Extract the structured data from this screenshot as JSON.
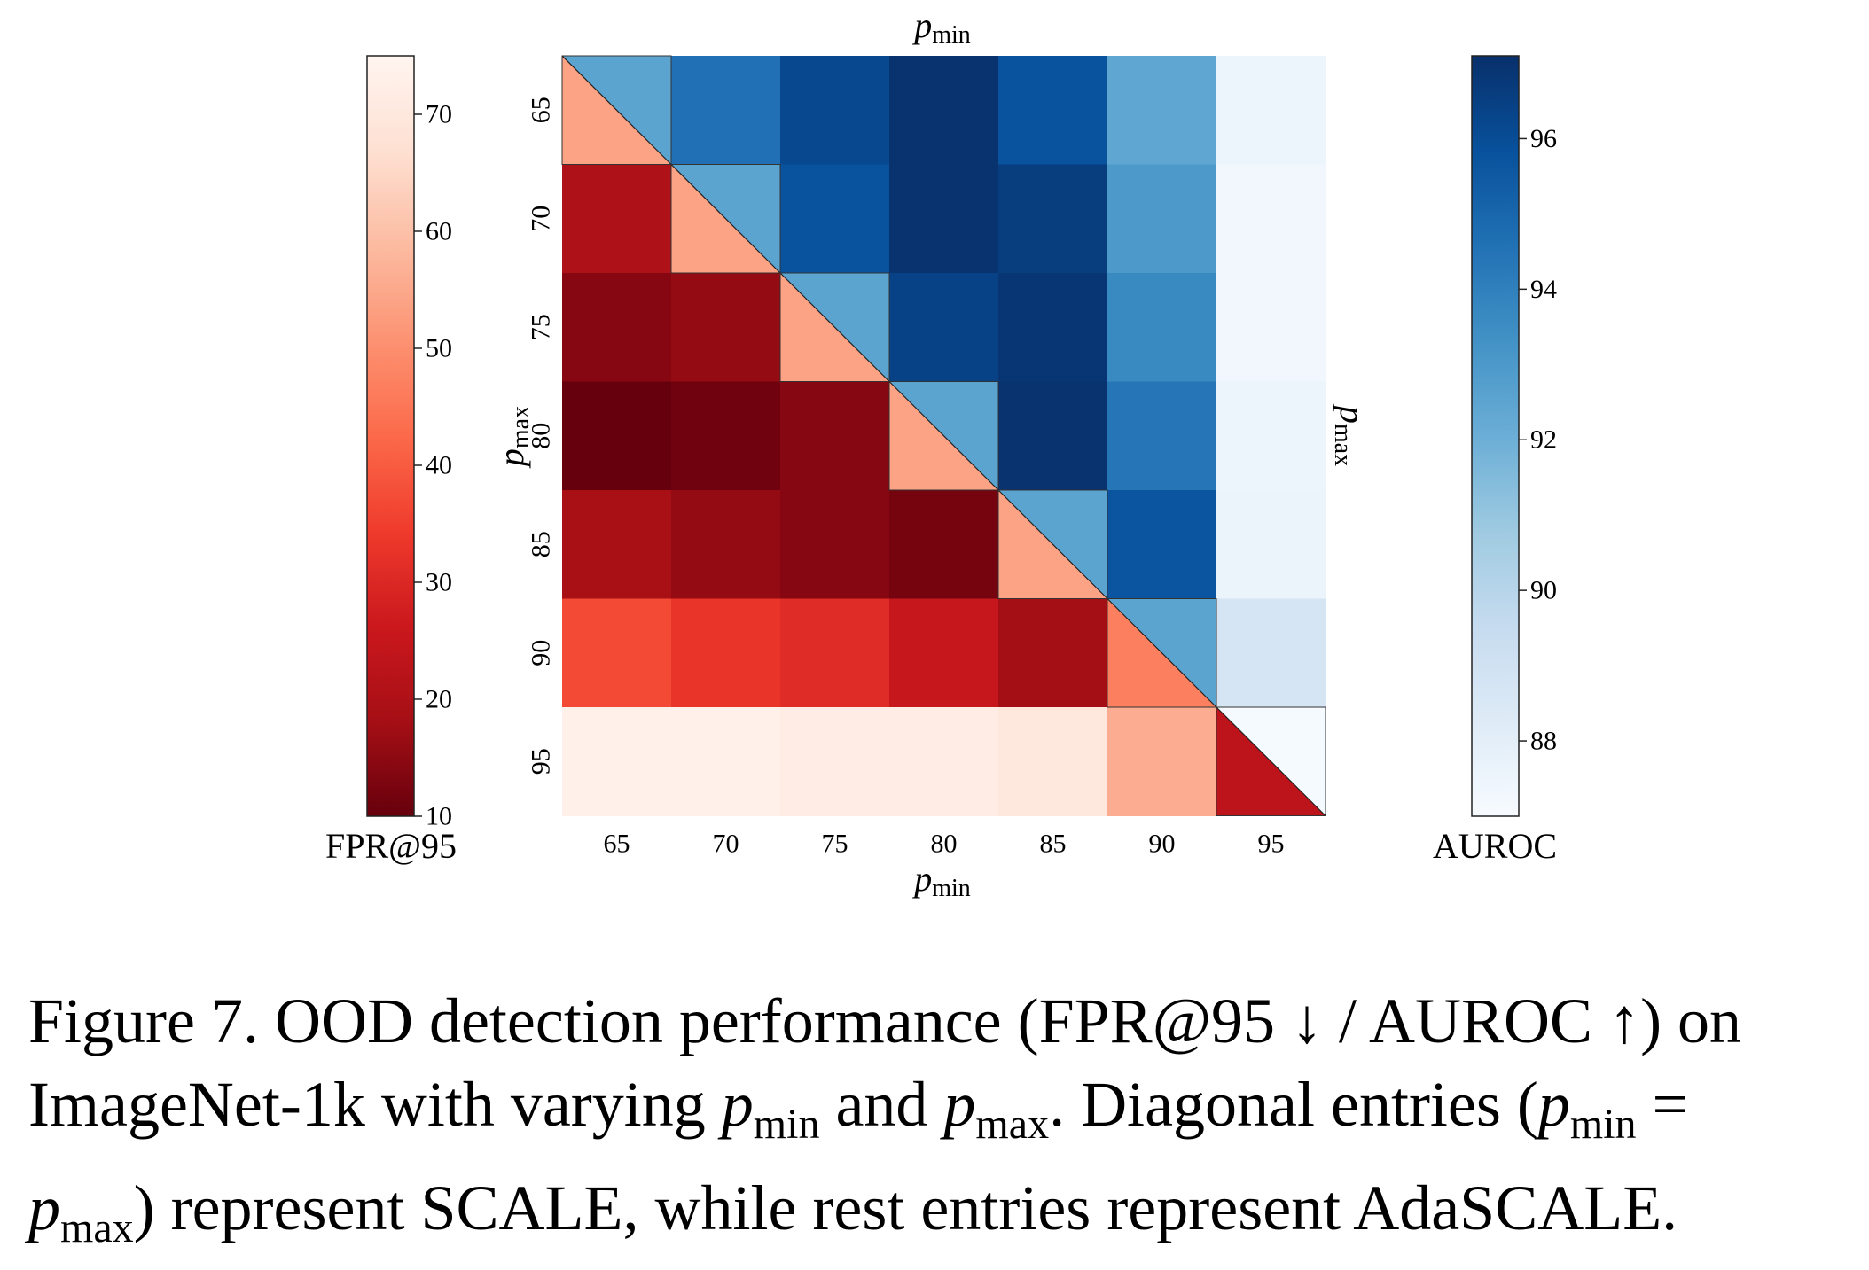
{
  "chart_data": {
    "type": "heatmap",
    "x_categories": [
      65,
      70,
      75,
      80,
      85,
      90,
      95
    ],
    "y_categories": [
      65,
      70,
      75,
      80,
      85,
      90,
      95
    ],
    "axis_labels": {
      "x_top": {
        "base": "p",
        "sub": "min"
      },
      "x_bottom": {
        "base": "p",
        "sub": "min"
      },
      "y_left": {
        "base": "p",
        "sub": "max"
      },
      "y_right": {
        "base": "p",
        "sub": "max"
      }
    },
    "fpr95": {
      "label": "FPR@95",
      "colorbar_range": [
        10,
        75
      ],
      "colorbar_ticks": [
        10,
        20,
        30,
        40,
        50,
        60,
        70
      ],
      "colormap": "Reds_r",
      "lower_triangle": [
        [
          54,
          null,
          null,
          null,
          null,
          null,
          null
        ],
        [
          20,
          54,
          null,
          null,
          null,
          null,
          null
        ],
        [
          14,
          16,
          54,
          null,
          null,
          null,
          null
        ],
        [
          10,
          11,
          14,
          54,
          null,
          null,
          null
        ],
        [
          19,
          16,
          14,
          12,
          54,
          null,
          null
        ],
        [
          37,
          33,
          31,
          25,
          18,
          47,
          null
        ],
        [
          73,
          73,
          72,
          72,
          70,
          56,
          23
        ]
      ]
    },
    "auroc": {
      "label": "AUROC",
      "colorbar_range": [
        87,
        97.1
      ],
      "colorbar_ticks": [
        88,
        90,
        92,
        94,
        96
      ],
      "colormap": "Blues",
      "upper_triangle": [
        [
          92.5,
          94.6,
          96.2,
          97.0,
          95.8,
          92.4,
          87.5
        ],
        [
          null,
          92.5,
          95.8,
          97.0,
          96.6,
          93.0,
          87.3
        ],
        [
          null,
          null,
          92.5,
          96.4,
          96.9,
          93.6,
          87.3
        ],
        [
          null,
          null,
          null,
          92.5,
          97.0,
          94.4,
          87.5
        ],
        [
          null,
          null,
          null,
          null,
          92.5,
          95.7,
          87.6
        ],
        [
          null,
          null,
          null,
          null,
          null,
          92.5,
          88.7
        ],
        [
          null,
          null,
          null,
          null,
          null,
          null,
          87.1
        ]
      ]
    },
    "colors": {
      "fpr_stops": [
        "#67000d",
        "#a50f15",
        "#cb181d",
        "#ef3b2c",
        "#fb6a4a",
        "#fc9272",
        "#fcbba1",
        "#fee0d2",
        "#fff5f0"
      ],
      "auroc_stops": [
        "#f7fbff",
        "#deebf7",
        "#c6dbef",
        "#9ecae1",
        "#6baed6",
        "#4292c6",
        "#2171b5",
        "#08519c",
        "#08306b"
      ]
    }
  },
  "caption": {
    "line1": "Figure 7. OOD detection performance (FPR@95 ↓ / AUROC ↑) on",
    "line2_a": "ImageNet-1k with varying ",
    "line2_b": " and ",
    "line2_c": ". Diagonal entries (",
    "line2_d": " =",
    "line3_a": ") represent SCALE, while rest entries represent AdaSCALE.",
    "p": "p",
    "min": "min",
    "max": "max"
  }
}
